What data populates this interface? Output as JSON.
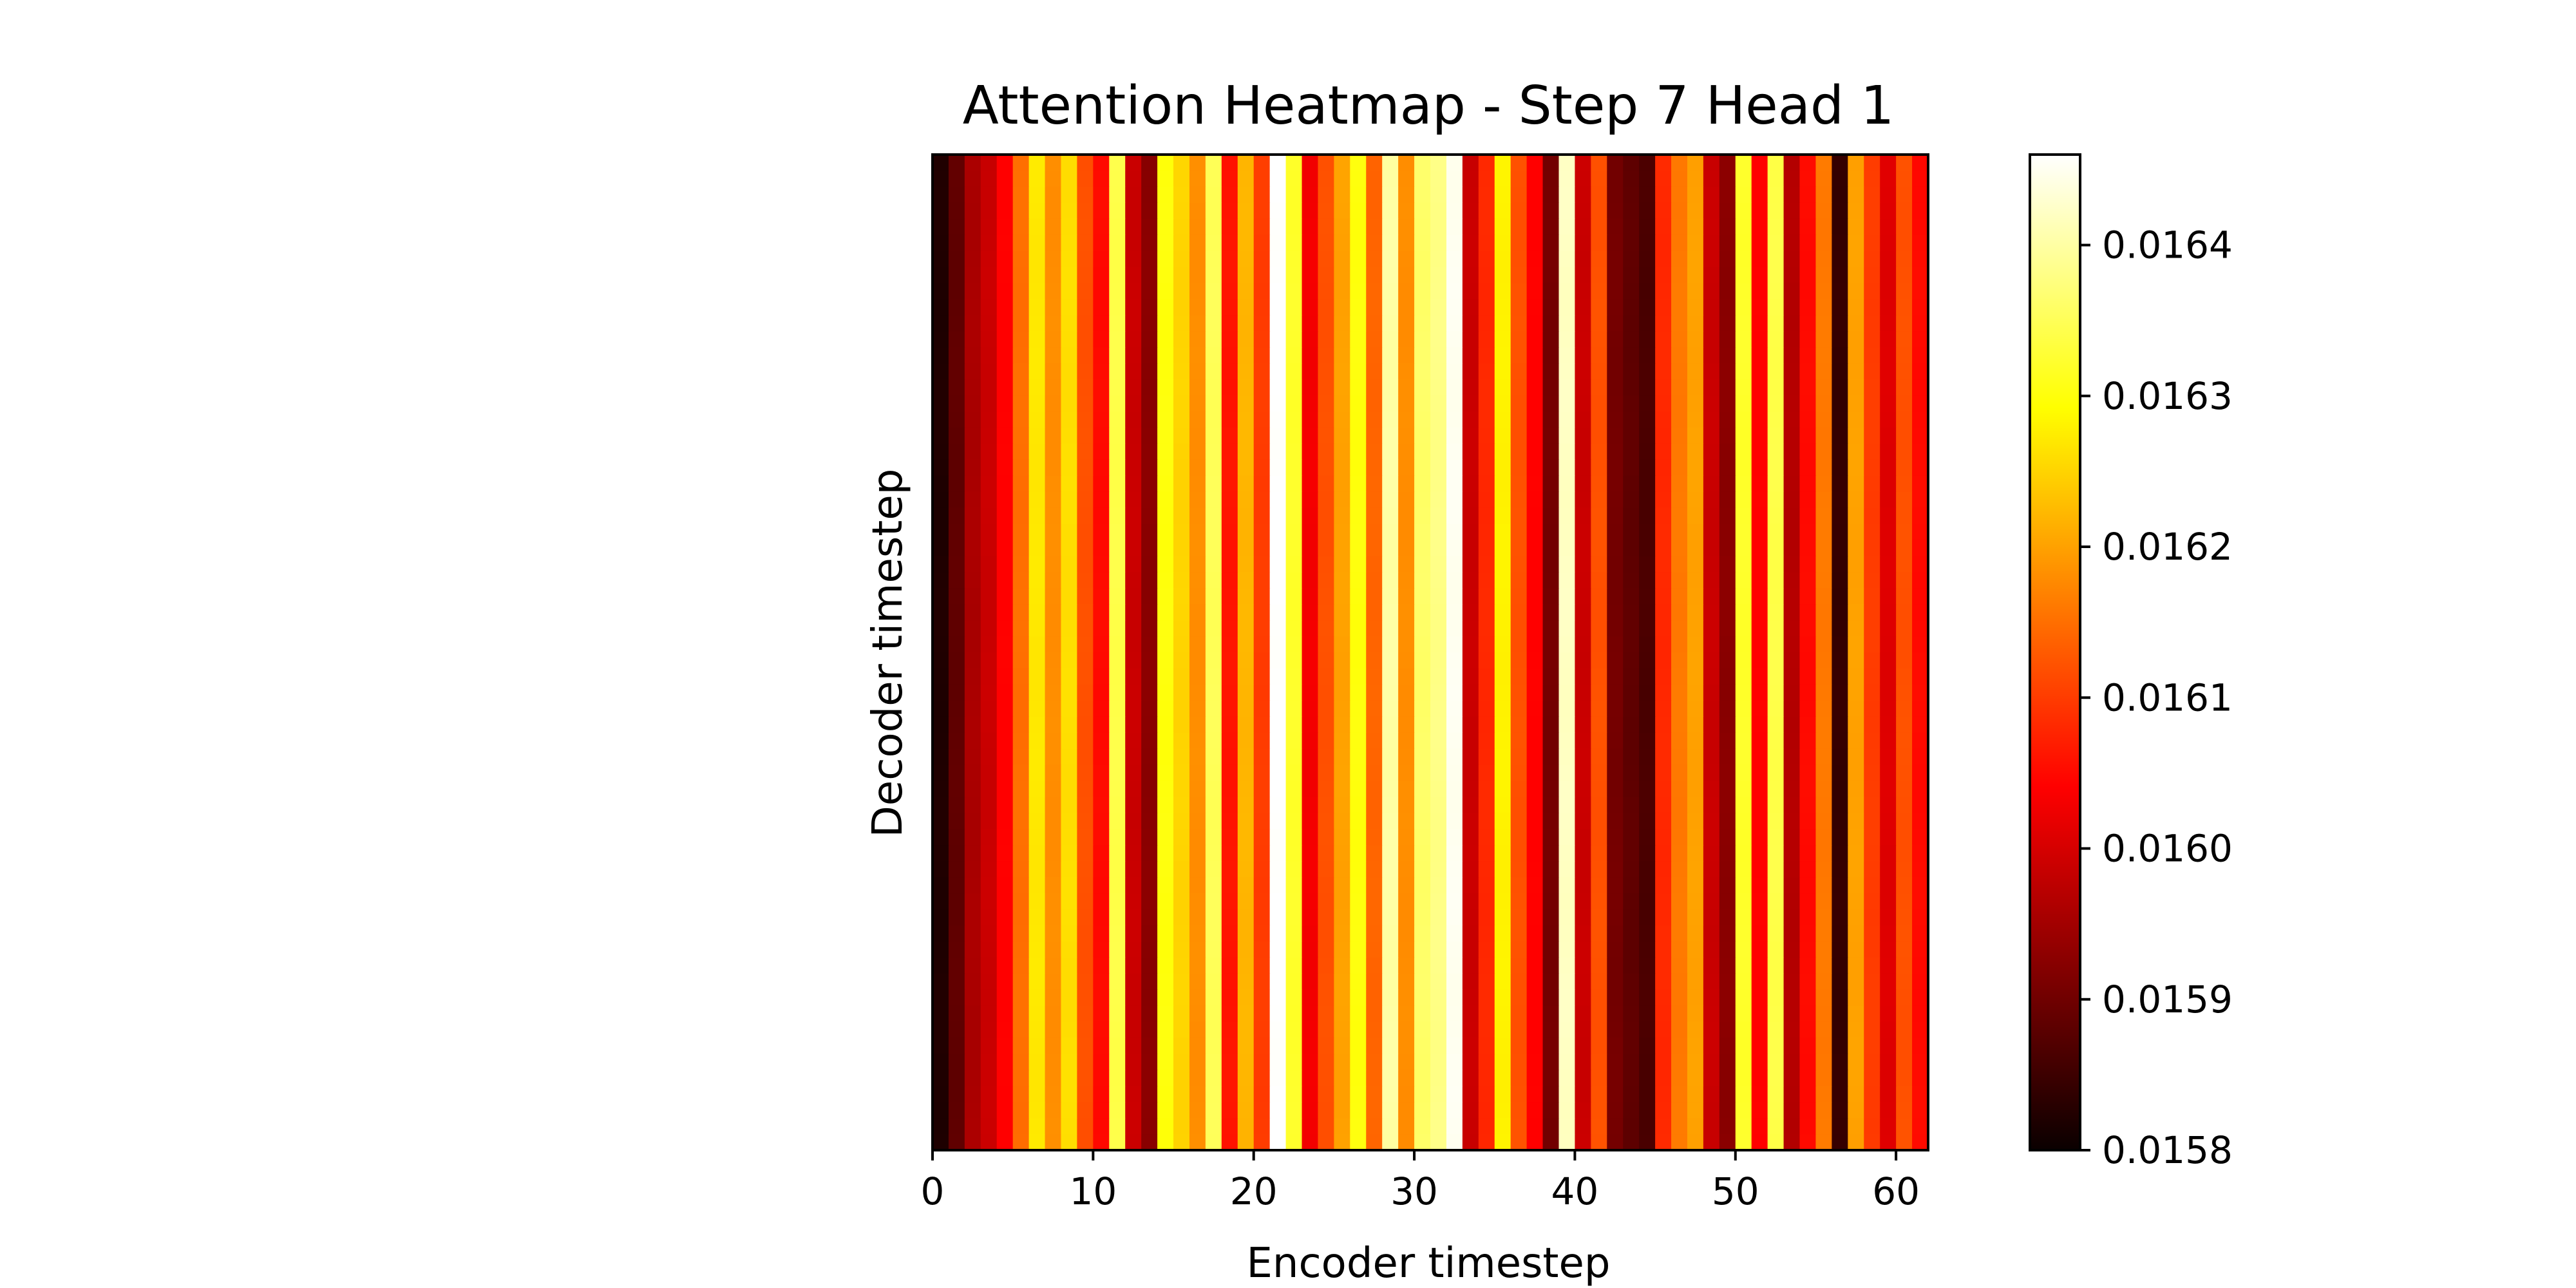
{
  "chart_data": {
    "type": "heatmap",
    "title": "Attention Heatmap - Step 7 Head 1",
    "xlabel": "Encoder timestep",
    "ylabel": "Decoder timestep",
    "n_cols": 62,
    "n_rows": 62,
    "xlim": [
      0,
      62
    ],
    "x_ticks": [
      0,
      10,
      20,
      30,
      40,
      50,
      60
    ],
    "x_tick_labels": [
      "0",
      "10",
      "20",
      "30",
      "40",
      "50",
      "60"
    ],
    "colormap": "hot",
    "colorbar": {
      "min": 0.0158,
      "max": 0.01646,
      "ticks": [
        0.0158,
        0.0159,
        0.016,
        0.0161,
        0.0162,
        0.0163,
        0.0164
      ],
      "tick_labels": [
        "0.0158",
        "0.0159",
        "0.0160",
        "0.0161",
        "0.0162",
        "0.0163",
        "0.0164"
      ]
    },
    "column_values": [
      0.01582,
      0.01588,
      0.01595,
      0.01598,
      0.01604,
      0.01615,
      0.01627,
      0.01618,
      0.01626,
      0.01612,
      0.01605,
      0.01634,
      0.01598,
      0.01592,
      0.0163,
      0.01625,
      0.01618,
      0.01635,
      0.01606,
      0.01622,
      0.0161,
      0.01646,
      0.01632,
      0.01602,
      0.01612,
      0.0162,
      0.0163,
      0.01614,
      0.0164,
      0.01618,
      0.01636,
      0.01638,
      0.01645,
      0.01598,
      0.01608,
      0.01628,
      0.01612,
      0.01604,
      0.0159,
      0.01642,
      0.01598,
      0.01612,
      0.0159,
      0.01588,
      0.01586,
      0.01608,
      0.01616,
      0.0162,
      0.01598,
      0.01592,
      0.01632,
      0.01604,
      0.01634,
      0.01596,
      0.01605,
      0.01616,
      0.01584,
      0.0162,
      0.0161,
      0.016,
      0.01612,
      0.01605
    ]
  }
}
